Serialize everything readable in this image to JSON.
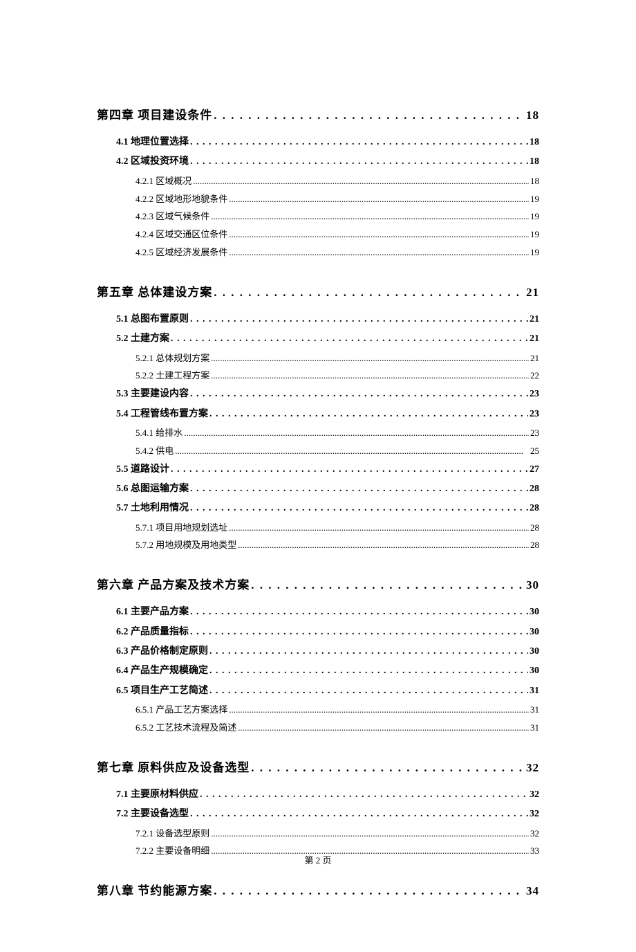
{
  "footer": "第 2 页",
  "toc": [
    {
      "level": "chapter",
      "label": "第四章  项目建设条件",
      "page": "18"
    },
    {
      "level": "section",
      "label": "4.1 地理位置选择",
      "page": "18"
    },
    {
      "level": "section",
      "label": "4.2 区域投资环境",
      "page": "18"
    },
    {
      "level": "subsection",
      "label": "4.2.1 区域概况",
      "page": "18"
    },
    {
      "level": "subsection",
      "label": "4.2.2 区域地形地貌条件",
      "page": "19"
    },
    {
      "level": "subsection",
      "label": "4.2.3 区域气候条件",
      "page": "19"
    },
    {
      "level": "subsection",
      "label": "4.2.4 区域交通区位条件",
      "page": "19"
    },
    {
      "level": "subsection",
      "label": "4.2.5 区域经济发展条件",
      "page": "19"
    },
    {
      "level": "chapter",
      "label": "第五章  总体建设方案",
      "page": "21"
    },
    {
      "level": "section",
      "label": "5.1 总图布置原则",
      "page": "21"
    },
    {
      "level": "section",
      "label": "5.2 土建方案",
      "page": "21"
    },
    {
      "level": "subsection",
      "label": "5.2.1 总体规划方案",
      "page": "21"
    },
    {
      "level": "subsection",
      "label": "5.2.2 土建工程方案",
      "page": "22"
    },
    {
      "level": "section",
      "label": "5.3 主要建设内容",
      "page": "23"
    },
    {
      "level": "section",
      "label": "5.4 工程管线布置方案",
      "page": "23"
    },
    {
      "level": "subsection",
      "label": "5.4.1 给排水",
      "page": "23"
    },
    {
      "level": "subsection",
      "label": "5.4.2 供电",
      "page": "25"
    },
    {
      "level": "section",
      "label": "5.5 道路设计",
      "page": "27"
    },
    {
      "level": "section",
      "label": "5.6 总图运输方案",
      "page": "28"
    },
    {
      "level": "section",
      "label": "5.7 土地利用情况",
      "page": "28"
    },
    {
      "level": "subsection",
      "label": "5.7.1 项目用地规划选址",
      "page": "28"
    },
    {
      "level": "subsection",
      "label": "5.7.2 用地规模及用地类型",
      "page": "28"
    },
    {
      "level": "chapter",
      "label": "第六章  产品方案及技术方案",
      "page": "30"
    },
    {
      "level": "section",
      "label": "6.1 主要产品方案",
      "page": "30"
    },
    {
      "level": "section",
      "label": "6.2 产品质量指标",
      "page": "30"
    },
    {
      "level": "section",
      "label": "6.3 产品价格制定原则",
      "page": "30"
    },
    {
      "level": "section",
      "label": "6.4 产品生产规模确定",
      "page": "30"
    },
    {
      "level": "section",
      "label": "6.5 项目生产工艺简述",
      "page": "31"
    },
    {
      "level": "subsection",
      "label": "6.5.1 产品工艺方案选择",
      "page": "31"
    },
    {
      "level": "subsection",
      "label": "6.5.2 工艺技术流程及简述",
      "page": "31"
    },
    {
      "level": "chapter",
      "label": "第七章  原料供应及设备选型",
      "page": "32"
    },
    {
      "level": "section",
      "label": "7.1 主要原材料供应",
      "page": "32"
    },
    {
      "level": "section",
      "label": "7.2 主要设备选型",
      "page": "32"
    },
    {
      "level": "subsection",
      "label": "7.2.1 设备选型原则",
      "page": "32"
    },
    {
      "level": "subsection",
      "label": "7.2.2 主要设备明细",
      "page": "33"
    },
    {
      "level": "chapter",
      "label": "第八章  节约能源方案",
      "page": "34"
    }
  ]
}
